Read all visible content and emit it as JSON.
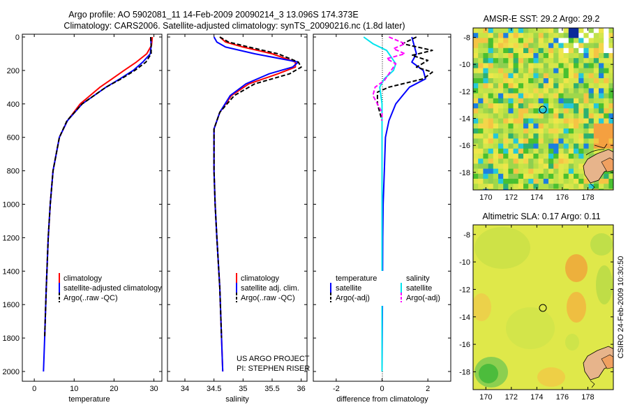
{
  "chart_data": [
    {
      "type": "line",
      "panel": "temperature",
      "title_line1": "Argo profile: AO 5902081_11 14-Feb-2009 20090214_3 13.096S 174.373E",
      "title_line2": "Climatology: CARS2006. Satellite-adjusted climatology: synTS_20090216.nc (1.8d later)",
      "xlabel": "temperature",
      "ylabel": "",
      "xlim": [
        -3,
        32
      ],
      "ylim": [
        2050,
        0
      ],
      "xticks": [
        0,
        10,
        20,
        30
      ],
      "yticks": [
        0,
        200,
        400,
        600,
        800,
        1000,
        1200,
        1400,
        1600,
        1800,
        2000
      ],
      "legend_position": "lower-center",
      "legend": [
        "climatology",
        "satellite-adjusted climatology",
        "Argo(..raw -QC)"
      ],
      "series": [
        {
          "name": "climatology",
          "color": "#ff0000",
          "dash": "",
          "depth": [
            0,
            50,
            100,
            150,
            200,
            250,
            300,
            400,
            500,
            600,
            800,
            1000,
            1200,
            1500,
            1800
          ],
          "values": [
            29.6,
            29.4,
            28.2,
            25.6,
            22.5,
            19.5,
            16.5,
            11.5,
            8.3,
            6.3,
            4.7,
            4.0,
            3.5,
            3.0,
            2.6
          ]
        },
        {
          "name": "satellite-adjusted climatology",
          "color": "#0000ff",
          "dash": "",
          "depth": [
            0,
            50,
            100,
            150,
            200,
            250,
            300,
            400,
            500,
            600,
            800,
            1000,
            1200,
            1500,
            1800,
            2000
          ],
          "values": [
            29.2,
            29.3,
            29.1,
            27.2,
            24.8,
            21.5,
            18.0,
            12.0,
            8.3,
            6.3,
            4.7,
            4.0,
            3.5,
            3.0,
            2.6,
            2.3
          ]
        },
        {
          "name": "Argo(..raw -QC)",
          "color": "#000000",
          "dash": "6,3",
          "depth": [
            0,
            50,
            100,
            150,
            200,
            250,
            300,
            400,
            500,
            600,
            800,
            1000,
            1200,
            1500,
            1800
          ],
          "values": [
            29.2,
            29.3,
            29.3,
            28.0,
            25.2,
            21.8,
            18.0,
            12.0,
            8.2,
            6.3,
            4.7,
            4.0,
            3.5,
            3.0,
            2.6
          ]
        }
      ]
    },
    {
      "type": "line",
      "panel": "salinity",
      "xlabel": "salinity",
      "xlim": [
        33.7,
        36.1
      ],
      "ylim": [
        2050,
        0
      ],
      "xticks": [
        34,
        34.5,
        35,
        35.5,
        36
      ],
      "xtick_labels": [
        "34",
        "34.5",
        "35",
        "35.5",
        "36"
      ],
      "legend_position": "lower-right",
      "legend": [
        "climatology",
        "satellite adj. clim.",
        "Argo(..raw -QC)"
      ],
      "annotation": [
        "US ARGO PROJECT",
        "PI: STEPHEN RISER"
      ],
      "series": [
        {
          "name": "climatology",
          "color": "#ff0000",
          "dash": "",
          "depth": [
            0,
            30,
            60,
            100,
            150,
            180,
            220,
            280,
            350,
            450,
            550,
            650,
            800,
            1000,
            1200,
            1500,
            1800,
            2000
          ],
          "values": [
            34.6,
            34.7,
            35.0,
            35.5,
            35.9,
            35.9,
            35.6,
            35.1,
            34.8,
            34.6,
            34.5,
            34.5,
            34.5,
            34.52,
            34.55,
            34.6,
            34.63,
            34.65
          ]
        },
        {
          "name": "satellite adj. clim.",
          "color": "#0000ff",
          "dash": "",
          "depth": [
            0,
            30,
            60,
            100,
            150,
            180,
            220,
            280,
            350,
            450,
            550,
            650,
            800,
            1000,
            1200,
            1500,
            1800,
            2000
          ],
          "values": [
            34.5,
            34.55,
            34.7,
            35.2,
            35.95,
            35.85,
            35.45,
            35.05,
            34.78,
            34.6,
            34.5,
            34.5,
            34.5,
            34.52,
            34.55,
            34.6,
            34.63,
            34.65
          ]
        },
        {
          "name": "Argo(..raw -QC)",
          "color": "#000000",
          "dash": "6,3",
          "depth": [
            0,
            30,
            60,
            100,
            150,
            180,
            220,
            280,
            350,
            450,
            550,
            650,
            800,
            1000,
            1200,
            1500,
            1800
          ],
          "values": [
            34.6,
            34.75,
            35.1,
            35.6,
            35.95,
            36.0,
            35.8,
            35.2,
            34.85,
            34.6,
            34.5,
            34.5,
            34.5,
            34.52,
            34.55,
            34.6,
            34.63
          ]
        }
      ]
    },
    {
      "type": "line",
      "panel": "difference",
      "xlabel": "difference from climatology",
      "xlim": [
        -3,
        3
      ],
      "ylim": [
        2050,
        0
      ],
      "xticks": [
        -2,
        0,
        2
      ],
      "legend_position": "lower",
      "legend_headers": [
        "temperature",
        "salinity"
      ],
      "legend": [
        "satellite",
        "Argo(-adj)",
        "satellite",
        "Argo(-adj)"
      ],
      "series": [
        {
          "name": "temperature satellite",
          "color": "#0000ff",
          "dash": "",
          "depth": [
            0,
            50,
            100,
            150,
            200,
            250,
            300,
            350,
            400,
            500,
            600,
            800,
            1000,
            1200,
            1500,
            2000
          ],
          "values": [
            1.3,
            1.4,
            1.5,
            1.3,
            1.8,
            1.9,
            1.2,
            0.9,
            0.6,
            0.3,
            0.15,
            0.1,
            0.05,
            0.03,
            0.02,
            0.0
          ]
        },
        {
          "name": "temperature Argo(-adj)",
          "color": "#000000",
          "dash": "6,3",
          "depth": [
            0,
            40,
            80,
            110,
            140,
            180,
            210,
            250,
            300,
            330,
            400,
            500,
            600
          ],
          "values": [
            1.5,
            0.9,
            2.2,
            1.3,
            2.0,
            1.5,
            2.2,
            1.8,
            0.3,
            -0.2,
            -0.2,
            0.0,
            0.0
          ]
        },
        {
          "name": "salinity satellite",
          "color": "#00e5ee",
          "dash": "",
          "depth": [
            0,
            40,
            80,
            120,
            160,
            200,
            250,
            300,
            400,
            500,
            600,
            800,
            1000,
            1500,
            2000
          ],
          "values": [
            -0.8,
            -0.4,
            0.2,
            0.4,
            0.6,
            0.5,
            0.1,
            -0.1,
            0.0,
            0.0,
            0.0,
            0.0,
            0.0,
            0.0,
            0.0
          ]
        },
        {
          "name": "salinity Argo(-adj)",
          "color": "#ff00ff",
          "dash": "6,3",
          "depth": [
            0,
            40,
            70,
            100,
            130,
            160,
            200,
            260,
            300,
            350,
            400,
            450,
            500
          ],
          "values": [
            0.3,
            1.0,
            0.5,
            1.0,
            0.2,
            0.6,
            0.4,
            0.1,
            -0.3,
            -0.4,
            -0.2,
            0.0,
            0.0
          ]
        }
      ]
    },
    {
      "type": "heatmap",
      "panel": "sst_map",
      "title": "AMSR-E SST: 29.2 Argo: 29.2",
      "xlim": [
        169,
        180
      ],
      "ylim": [
        -19.3,
        -7.3
      ],
      "xticks": [
        170,
        172,
        174,
        176,
        178
      ],
      "yticks": [
        -8,
        -10,
        -12,
        -14,
        -16,
        -18
      ],
      "argo_marker": [
        174.373,
        -13.096
      ]
    },
    {
      "type": "heatmap",
      "panel": "sla_map",
      "title": "Altimetric SLA: 0.17 Argo: 0.11",
      "xlim": [
        169,
        180
      ],
      "ylim": [
        -19.3,
        -7.3
      ],
      "xticks": [
        170,
        172,
        174,
        176,
        178
      ],
      "yticks": [
        -8,
        -10,
        -12,
        -14,
        -16,
        -18
      ],
      "argo_marker": [
        174.373,
        -13.096
      ]
    }
  ],
  "side_label": "CSIRO 24-Feb-2009 10:30:50",
  "colors": {
    "axis": "#000000",
    "background": "#ffffff"
  }
}
